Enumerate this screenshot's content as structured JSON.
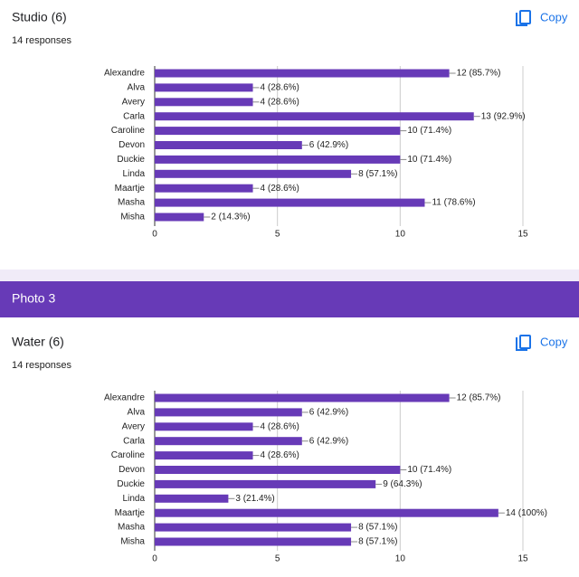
{
  "section_header": "Photo 3",
  "chart_data": [
    {
      "type": "bar",
      "title": "Studio (6)",
      "subtitle": "14 responses",
      "copy_label": "Copy",
      "color": "#673ab7",
      "categories": [
        "Alexandre",
        "Alva",
        "Avery",
        "Carla",
        "Caroline",
        "Devon",
        "Duckie",
        "Linda",
        "Maartje",
        "Masha",
        "Misha"
      ],
      "values": [
        12,
        4,
        4,
        13,
        10,
        6,
        10,
        8,
        4,
        11,
        2
      ],
      "value_labels": [
        "12 (85.7%)",
        "4 (28.6%)",
        "4 (28.6%)",
        "13 (92.9%)",
        "10 (71.4%)",
        "6 (42.9%)",
        "10 (71.4%)",
        "8 (57.1%)",
        "4 (28.6%)",
        "11 (78.6%)",
        "2 (14.3%)"
      ],
      "xlim": [
        0,
        15
      ],
      "xticks": [
        0,
        5,
        10,
        15
      ],
      "grid": true
    },
    {
      "type": "bar",
      "title": "Water (6)",
      "subtitle": "14 responses",
      "copy_label": "Copy",
      "color": "#673ab7",
      "categories": [
        "Alexandre",
        "Alva",
        "Avery",
        "Carla",
        "Caroline",
        "Devon",
        "Duckie",
        "Linda",
        "Maartje",
        "Masha",
        "Misha"
      ],
      "values": [
        12,
        6,
        4,
        6,
        4,
        10,
        9,
        3,
        14,
        8,
        8
      ],
      "value_labels": [
        "12 (85.7%)",
        "6 (42.9%)",
        "4 (28.6%)",
        "6 (42.9%)",
        "4 (28.6%)",
        "10 (71.4%)",
        "9 (64.3%)",
        "3 (21.4%)",
        "14 (100%)",
        "8 (57.1%)",
        "8 (57.1%)"
      ],
      "xlim": [
        0,
        15
      ],
      "xticks": [
        0,
        5,
        10,
        15
      ],
      "grid": true
    }
  ]
}
